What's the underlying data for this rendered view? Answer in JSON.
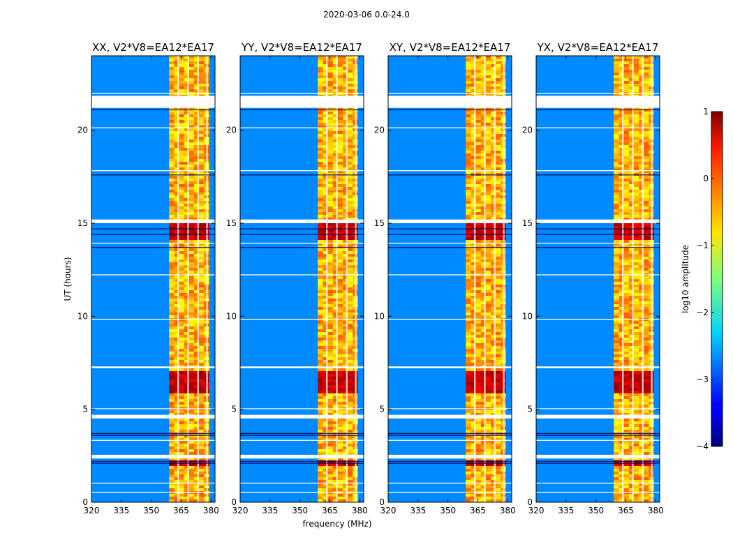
{
  "figure_title": "2020-03-06 0.0-24.0",
  "chart_data": {
    "type": "heatmap",
    "suptitle": "2020-03-06 0.0-24.0",
    "xlabel": "frequency (MHz)",
    "ylabel": "UT (hours)",
    "xlim": [
      320,
      382
    ],
    "ylim": [
      0,
      24
    ],
    "xticks": [
      320,
      335,
      350,
      365,
      380
    ],
    "yticks": [
      0,
      5,
      10,
      15,
      20
    ],
    "colorbar": {
      "label": "log10 amplitude",
      "range": [
        -4,
        1
      ],
      "ticks": [
        1,
        0,
        -1,
        -2,
        -3,
        -4
      ],
      "colormap": "jet"
    },
    "panels": [
      {
        "title": "XX, V2*V8=EA12*EA17",
        "polarization": "XX"
      },
      {
        "title": "YY, V2*V8=EA12*EA17",
        "polarization": "YY"
      },
      {
        "title": "XY, V2*V8=EA12*EA17",
        "polarization": "XY"
      },
      {
        "title": "YX, V2*V8=EA12*EA17",
        "polarization": "YX"
      }
    ],
    "bright_band_mhz": [
      359,
      379
    ],
    "background_log10_amplitude": -2.7,
    "band_log10_amplitude": -0.5,
    "flagged_ut_hours": [
      [
        21.2,
        21.85
      ],
      [
        15.0,
        15.2
      ],
      [
        7.2,
        7.3
      ],
      [
        4.5,
        4.7
      ],
      [
        2.35,
        2.55
      ],
      [
        21.95,
        22.0
      ],
      [
        20.1,
        20.15
      ],
      [
        17.8,
        17.85
      ],
      [
        13.9,
        13.95
      ],
      [
        12.2,
        12.25
      ],
      [
        9.8,
        9.85
      ],
      [
        5.0,
        5.05
      ],
      [
        3.3,
        3.35
      ],
      [
        1.0,
        1.05
      ],
      [
        0.5,
        0.55
      ]
    ],
    "flagged_channels_mhz": [
      363.5,
      368.5,
      373.5,
      378
    ]
  }
}
